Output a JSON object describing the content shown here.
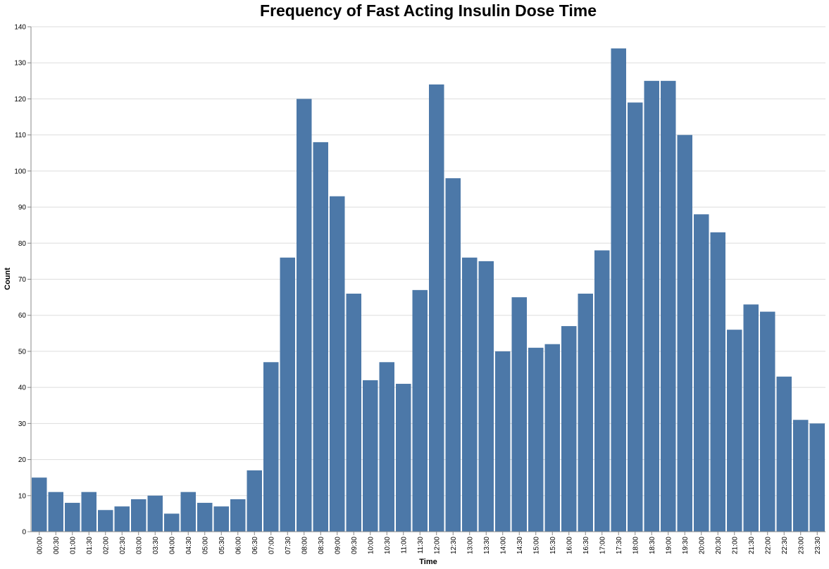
{
  "chart_data": {
    "type": "bar",
    "title": "Frequency of Fast Acting Insulin Dose Time",
    "xlabel": "Time",
    "ylabel": "Count",
    "ylim": [
      0,
      140
    ],
    "yticks": [
      0,
      10,
      20,
      30,
      40,
      50,
      60,
      70,
      80,
      90,
      100,
      110,
      120,
      130,
      140
    ],
    "grid": true,
    "legend": "none",
    "bar_color": "#4c78a8",
    "categories": [
      "00:00",
      "00:30",
      "01:00",
      "01:30",
      "02:00",
      "02:30",
      "03:00",
      "03:30",
      "04:00",
      "04:30",
      "05:00",
      "05:30",
      "06:00",
      "06:30",
      "07:00",
      "07:30",
      "08:00",
      "08:30",
      "09:00",
      "09:30",
      "10:00",
      "10:30",
      "11:00",
      "11:30",
      "12:00",
      "12:30",
      "13:00",
      "13:30",
      "14:00",
      "14:30",
      "15:00",
      "15:30",
      "16:00",
      "16:30",
      "17:00",
      "17:30",
      "18:00",
      "18:30",
      "19:00",
      "19:30",
      "20:00",
      "20:30",
      "21:00",
      "21:30",
      "22:00",
      "22:30",
      "23:00",
      "23:30"
    ],
    "values": [
      15,
      11,
      8,
      11,
      6,
      7,
      9,
      10,
      5,
      11,
      8,
      7,
      9,
      17,
      47,
      76,
      120,
      108,
      93,
      66,
      42,
      47,
      41,
      67,
      124,
      98,
      76,
      75,
      50,
      65,
      51,
      52,
      57,
      66,
      78,
      134,
      119,
      125,
      125,
      110,
      88,
      83,
      56,
      63,
      61,
      43,
      31,
      30
    ]
  }
}
